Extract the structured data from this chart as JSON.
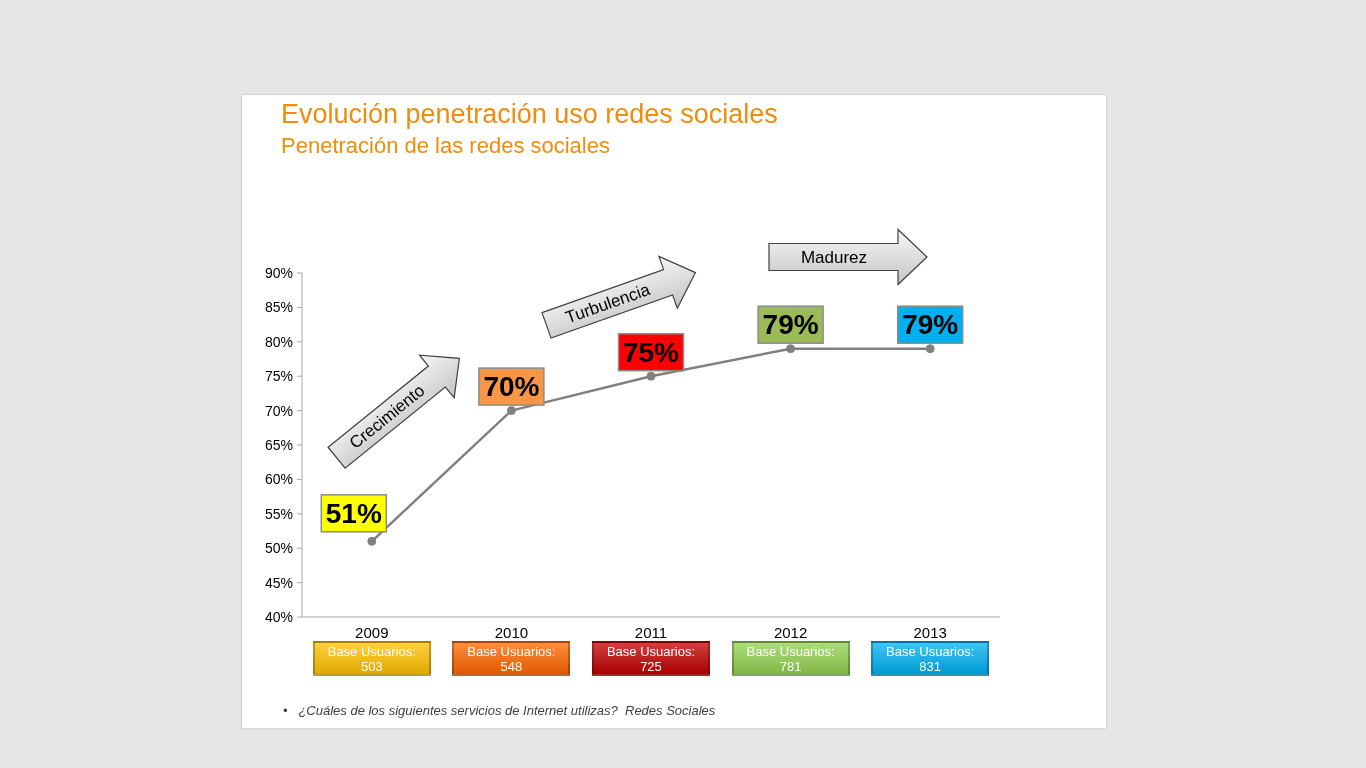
{
  "chart_data": {
    "type": "line",
    "title": "Evolución penetración uso redes sociales",
    "subtitle": "Penetración de las redes sociales",
    "categories": [
      "2009",
      "2010",
      "2011",
      "2012",
      "2013"
    ],
    "values": [
      51,
      70,
      75,
      79,
      79
    ],
    "color": "#808080",
    "colors": [
      "#ffff00",
      "#f79646",
      "#ff0000",
      "#9bbb59",
      "#00b0f0"
    ],
    "value_labels": [
      "51%",
      "70%",
      "75%",
      "79%",
      "79%"
    ],
    "ylim": [
      40,
      90
    ],
    "yticks": [
      {
        "value": 40,
        "label": "40%"
      },
      {
        "value": 45,
        "label": "45%"
      },
      {
        "value": 50,
        "label": "50%"
      },
      {
        "value": 55,
        "label": "55%"
      },
      {
        "value": 60,
        "label": "60%"
      },
      {
        "value": 65,
        "label": "65%"
      },
      {
        "value": 70,
        "label": "70%"
      },
      {
        "value": 75,
        "label": "75%"
      },
      {
        "value": 80,
        "label": "80%"
      },
      {
        "value": 85,
        "label": "85%"
      },
      {
        "value": 90,
        "label": "90%"
      }
    ],
    "marker": "circle",
    "line_style": "solid",
    "annotations": [
      "Crecimiento",
      "Turbulencia",
      "Madurez",
      "Base Usuarios: 503",
      "Base Usuarios: 548",
      "Base Usuarios: 725",
      "Base Usuarios: 781",
      "Base Usuarios: 831",
      "•   ¿Cuáles de los siguientes servicios de Internet utilizas?  Redes Sociales"
    ]
  }
}
